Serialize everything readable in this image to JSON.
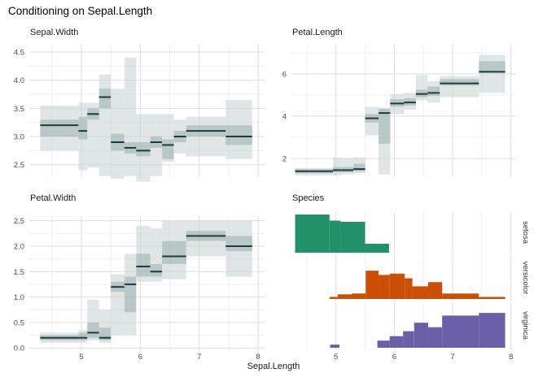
{
  "figure": {
    "title": "Conditioning on Sepal.Length",
    "x_axis_title": "Sepal.Length",
    "background": "#ffffff"
  },
  "colors": {
    "box_light": "rgba(203,214,214,0.6)",
    "box_dark": "rgba(148,168,168,0.5)",
    "median_line": "#1e3a3e",
    "grid_major": "#dddddd",
    "grid_minor": "#efefef",
    "tick_label": "#4d4d4d",
    "text": "#1a1a1a",
    "strip_label": "#333333",
    "setosa": "#22916a",
    "versicolor": "#cc4f08",
    "virginica": "#6b60a8"
  },
  "x_axis": {
    "ticks": [
      "5",
      "6",
      "7",
      "8"
    ],
    "tick_values": [
      5,
      6,
      7,
      8
    ],
    "minor_values": [
      4.5,
      5.5,
      6.5,
      7.5
    ],
    "range": [
      4.3,
      7.9
    ]
  },
  "chart_data": [
    {
      "type": "conditional-interval",
      "title": "Sepal.Width",
      "y_ticks": [
        "2.5",
        "3.0",
        "3.5",
        "4.0",
        "4.5"
      ],
      "y_tick_values": [
        2.5,
        3.0,
        3.5,
        4.0,
        4.5
      ],
      "y_minor": [
        2.75,
        3.25,
        3.75,
        4.25
      ],
      "ylim": [
        2.28,
        4.63
      ],
      "bin_columns": [
        "x0",
        "x1",
        "median",
        "q1",
        "q3",
        "low",
        "high"
      ],
      "bins": [
        [
          4.3,
          4.95,
          3.2,
          3.0,
          3.3,
          2.75,
          3.55
        ],
        [
          4.95,
          5.1,
          3.1,
          2.95,
          3.35,
          2.4,
          3.6
        ],
        [
          5.1,
          5.3,
          3.4,
          3.3,
          3.5,
          2.45,
          3.6
        ],
        [
          5.3,
          5.5,
          3.7,
          3.5,
          3.85,
          2.3,
          4.1
        ],
        [
          5.5,
          5.73,
          2.9,
          2.75,
          3.05,
          2.25,
          3.85
        ],
        [
          5.73,
          5.93,
          2.8,
          2.7,
          2.9,
          2.3,
          4.4
        ],
        [
          5.93,
          6.17,
          2.75,
          2.65,
          2.9,
          2.2,
          3.4
        ],
        [
          6.17,
          6.37,
          2.9,
          2.8,
          3.0,
          2.3,
          3.4
        ],
        [
          6.37,
          6.57,
          2.85,
          2.6,
          2.95,
          2.55,
          3.4
        ],
        [
          6.57,
          6.78,
          3.0,
          2.9,
          3.1,
          2.7,
          3.3
        ],
        [
          6.78,
          7.45,
          3.1,
          3.0,
          3.2,
          2.65,
          3.35
        ],
        [
          7.45,
          7.9,
          3.0,
          2.85,
          3.2,
          2.6,
          3.65
        ]
      ]
    },
    {
      "type": "conditional-interval",
      "title": "Petal.Length",
      "y_ticks": [
        "2",
        "4",
        "6"
      ],
      "y_tick_values": [
        2,
        4,
        6
      ],
      "y_minor": [
        1,
        3,
        5,
        7
      ],
      "ylim": [
        1.12,
        7.38
      ],
      "bin_columns": [
        "x0",
        "x1",
        "median",
        "q1",
        "q3",
        "low",
        "high"
      ],
      "bins": [
        [
          4.3,
          4.95,
          1.4,
          1.3,
          1.5,
          1.2,
          1.55
        ],
        [
          4.95,
          5.1,
          1.45,
          1.35,
          1.6,
          1.2,
          2.05
        ],
        [
          5.1,
          5.3,
          1.45,
          1.35,
          1.6,
          1.25,
          2.0
        ],
        [
          5.3,
          5.5,
          1.5,
          1.4,
          1.75,
          1.3,
          2.05
        ],
        [
          5.5,
          5.73,
          3.9,
          3.7,
          4.1,
          3.1,
          4.45
        ],
        [
          5.73,
          5.93,
          4.15,
          2.7,
          4.35,
          1.25,
          4.4
        ],
        [
          5.93,
          6.17,
          4.6,
          4.45,
          4.8,
          4.1,
          5.05
        ],
        [
          6.17,
          6.37,
          4.65,
          4.5,
          4.85,
          4.3,
          5.1
        ],
        [
          6.37,
          6.57,
          5.05,
          4.9,
          5.25,
          4.75,
          5.95
        ],
        [
          6.57,
          6.78,
          5.1,
          4.95,
          5.4,
          4.65,
          5.65
        ],
        [
          6.78,
          7.45,
          5.55,
          5.45,
          5.75,
          4.9,
          5.9
        ],
        [
          7.45,
          7.9,
          6.1,
          6.05,
          6.6,
          5.1,
          6.9
        ]
      ]
    },
    {
      "type": "conditional-interval",
      "title": "Petal.Width",
      "y_ticks": [
        "0.0",
        "0.5",
        "1.0",
        "1.5",
        "2.0",
        "2.5"
      ],
      "y_tick_values": [
        0.0,
        0.5,
        1.0,
        1.5,
        2.0,
        2.5
      ],
      "y_minor": [
        0.25,
        0.75,
        1.25,
        1.75,
        2.25
      ],
      "ylim": [
        -0.06,
        2.59
      ],
      "bin_columns": [
        "x0",
        "x1",
        "median",
        "q1",
        "q3",
        "low",
        "high"
      ],
      "bins": [
        [
          4.3,
          4.95,
          0.2,
          0.15,
          0.25,
          0.1,
          0.3
        ],
        [
          4.95,
          5.1,
          0.2,
          0.15,
          0.3,
          0.1,
          0.35
        ],
        [
          5.1,
          5.3,
          0.3,
          0.2,
          0.5,
          0.15,
          0.95
        ],
        [
          5.3,
          5.5,
          0.2,
          0.15,
          0.4,
          0.1,
          0.75
        ],
        [
          5.5,
          5.73,
          1.2,
          1.1,
          1.3,
          0.25,
          1.45
        ],
        [
          5.73,
          5.93,
          1.25,
          0.7,
          1.4,
          0.25,
          1.85
        ],
        [
          5.93,
          6.17,
          1.6,
          1.4,
          1.85,
          1.3,
          2.4
        ],
        [
          6.17,
          6.37,
          1.5,
          1.4,
          1.65,
          1.3,
          2.35
        ],
        [
          6.37,
          6.57,
          1.8,
          1.65,
          2.1,
          1.35,
          2.5
        ],
        [
          6.57,
          6.78,
          1.8,
          1.65,
          2.1,
          1.35,
          2.5
        ],
        [
          6.78,
          7.45,
          2.2,
          2.1,
          2.3,
          1.8,
          2.5
        ],
        [
          7.45,
          7.9,
          2.0,
          1.9,
          2.2,
          1.4,
          2.5
        ]
      ]
    },
    {
      "type": "faceted-histogram",
      "title": "Species",
      "bar_columns": [
        "x0",
        "x1",
        "height_fraction_of_facet"
      ],
      "facets": [
        {
          "label": "setosa",
          "color": "#22916a",
          "bars": [
            [
              4.3,
              4.89,
              0.94
            ],
            [
              4.89,
              5.08,
              0.79
            ],
            [
              5.08,
              5.5,
              0.76
            ],
            [
              5.5,
              5.91,
              0.22
            ]
          ]
        },
        {
          "label": "versicolor",
          "color": "#cc4f08",
          "bars": [
            [
              4.89,
              5.03,
              0.05
            ],
            [
              5.03,
              5.27,
              0.11
            ],
            [
              5.27,
              5.51,
              0.13
            ],
            [
              5.51,
              5.73,
              0.67
            ],
            [
              5.73,
              5.92,
              0.57
            ],
            [
              5.92,
              6.18,
              0.6
            ],
            [
              6.18,
              6.31,
              0.49
            ],
            [
              6.31,
              6.58,
              0.3
            ],
            [
              6.58,
              6.82,
              0.4
            ],
            [
              6.82,
              7.45,
              0.13
            ],
            [
              7.45,
              7.9,
              0.05
            ]
          ]
        },
        {
          "label": "virginica",
          "color": "#6b60a8",
          "bars": [
            [
              4.9,
              5.06,
              0.07
            ],
            [
              5.71,
              5.92,
              0.16
            ],
            [
              5.92,
              6.15,
              0.26
            ],
            [
              6.15,
              6.34,
              0.37
            ],
            [
              6.34,
              6.58,
              0.56
            ],
            [
              6.58,
              6.82,
              0.46
            ],
            [
              6.82,
              7.45,
              0.72
            ],
            [
              7.45,
              7.9,
              0.78
            ]
          ]
        }
      ]
    }
  ]
}
